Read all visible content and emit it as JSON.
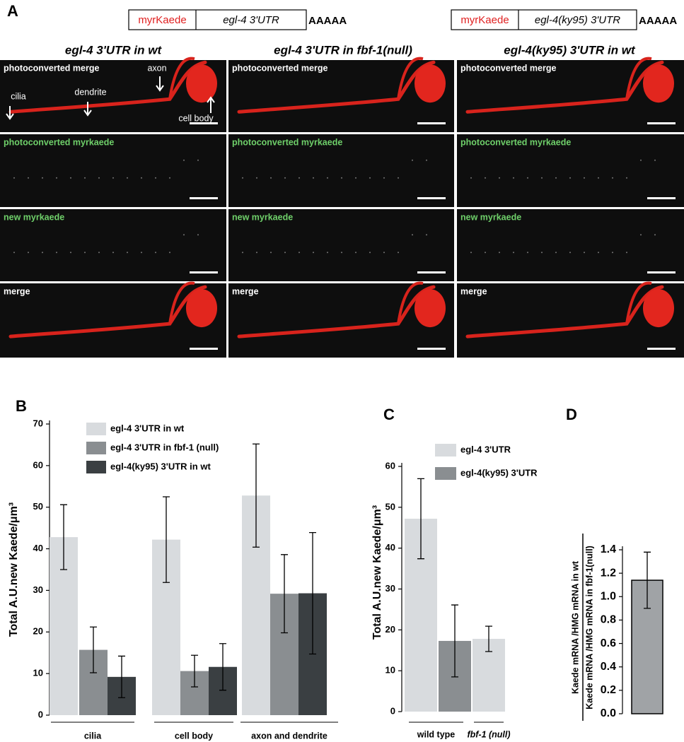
{
  "panel_a": {
    "label": "A",
    "constructs": [
      {
        "gene": "myrKaede",
        "utr": "egl-4 3'UTR",
        "tail": "AAAAA"
      },
      {
        "gene": "myrKaede",
        "utr": "egl-4(ky95) 3'UTR",
        "tail": "AAAAA"
      }
    ],
    "columns": [
      "egl-4 3'UTR in wt",
      "egl-4 3'UTR in fbf-1(null)",
      "egl-4(ky95) 3'UTR in wt"
    ],
    "rows": [
      "photoconverted merge",
      "photoconverted myrkaede",
      "new myrkaede",
      "merge"
    ],
    "annotations": [
      "cilia",
      "dendrite",
      "axon",
      "cell body"
    ]
  },
  "chart_data": [
    {
      "type": "bar",
      "panel_label": "B",
      "ylabel": [
        "Total  A.U.new Kaede/μm³"
      ],
      "categories": [
        "cilia",
        "cell body",
        "axon and dendrite"
      ],
      "series": [
        {
          "name": "egl-4 3'UTR in wt",
          "color": "#d8dbde",
          "values": [
            42.8,
            42.2,
            52.8
          ],
          "errors": [
            7.8,
            10.3,
            12.4
          ]
        },
        {
          "name": "egl-4 3'UTR in fbf-1 (null)",
          "color": "#8a8e91",
          "values": [
            15.7,
            10.6,
            29.2
          ],
          "errors": [
            5.5,
            3.8,
            9.4
          ]
        },
        {
          "name": "egl-4(ky95) 3'UTR in wt",
          "color": "#3a3f42",
          "values": [
            9.2,
            11.6,
            29.3
          ],
          "errors": [
            5.0,
            5.6,
            14.6
          ]
        }
      ],
      "ylim": [
        0,
        70
      ],
      "yticks": [
        0,
        10,
        20,
        30,
        40,
        50,
        60,
        70
      ]
    },
    {
      "type": "bar",
      "panel_label": "C",
      "ylabel": [
        "Total  A.U.new Kaede/μm³"
      ],
      "categories": [
        "wild type",
        "fbf-1 (null)"
      ],
      "series": [
        {
          "name": "egl-4 3'UTR",
          "color": "#d8dbde",
          "values": [
            47.2,
            17.8
          ],
          "errors": [
            9.8,
            3.1
          ]
        },
        {
          "name": "egl-4(ky95) 3'UTR",
          "color": "#8a8e91",
          "values": [
            17.3,
            null
          ],
          "errors": [
            8.8,
            null
          ]
        }
      ],
      "ylim": [
        0,
        60
      ],
      "yticks": [
        0,
        10,
        20,
        30,
        40,
        50,
        60
      ]
    },
    {
      "type": "bar",
      "panel_label": "D",
      "ylabel": [
        "Kaede mRNA /HMG mRNA in wt",
        "Kaede mRNA /HMG mRNA in fbf-1(null)"
      ],
      "series": [
        {
          "color": "#a0a3a6",
          "values": [
            1.14
          ],
          "errors": [
            0.24
          ]
        }
      ],
      "ylim": [
        0,
        1.4
      ],
      "yticks": [
        {
          "value": 0,
          "label": "0.0"
        },
        0.2,
        0.4,
        0.6,
        0.8,
        {
          "value": 1,
          "label": "1.0"
        },
        1.2,
        1.4
      ]
    }
  ]
}
